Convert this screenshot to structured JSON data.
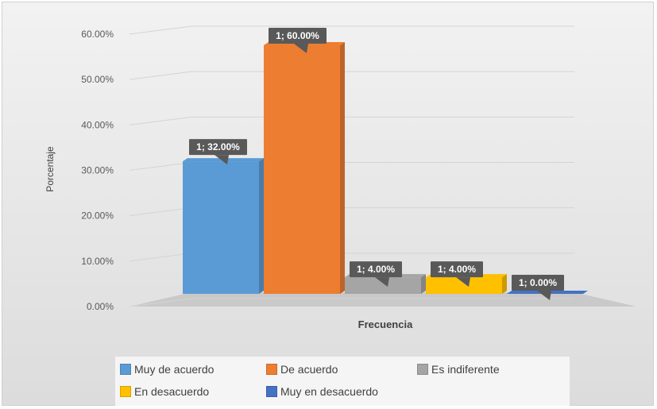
{
  "chart_data": {
    "type": "bar",
    "title": "",
    "xlabel": "Frecuencia",
    "ylabel": "Porcentaje",
    "ylim": [
      0,
      0.6
    ],
    "yticks": [
      "0.00%",
      "10.00%",
      "20.00%",
      "30.00%",
      "40.00%",
      "50.00%",
      "60.00%"
    ],
    "categories": [
      "1"
    ],
    "series": [
      {
        "name": "Muy de acuerdo",
        "values": [
          0.32
        ],
        "label": "1; 32.00%",
        "color": "#5b9bd5"
      },
      {
        "name": "De acuerdo",
        "values": [
          0.6
        ],
        "label": "1; 60.00%",
        "color": "#ed7d31"
      },
      {
        "name": "Es indiferente",
        "values": [
          0.04
        ],
        "label": "1; 4.00%",
        "color": "#a5a5a5"
      },
      {
        "name": "En desacuerdo",
        "values": [
          0.04
        ],
        "label": "1; 4.00%",
        "color": "#ffc000"
      },
      {
        "name": "Muy en desacuerdo",
        "values": [
          0.0
        ],
        "label": "1; 0.00%",
        "color": "#4472c4"
      }
    ],
    "legend_position": "bottom",
    "grid": true,
    "style": "3d-clustered-column"
  }
}
